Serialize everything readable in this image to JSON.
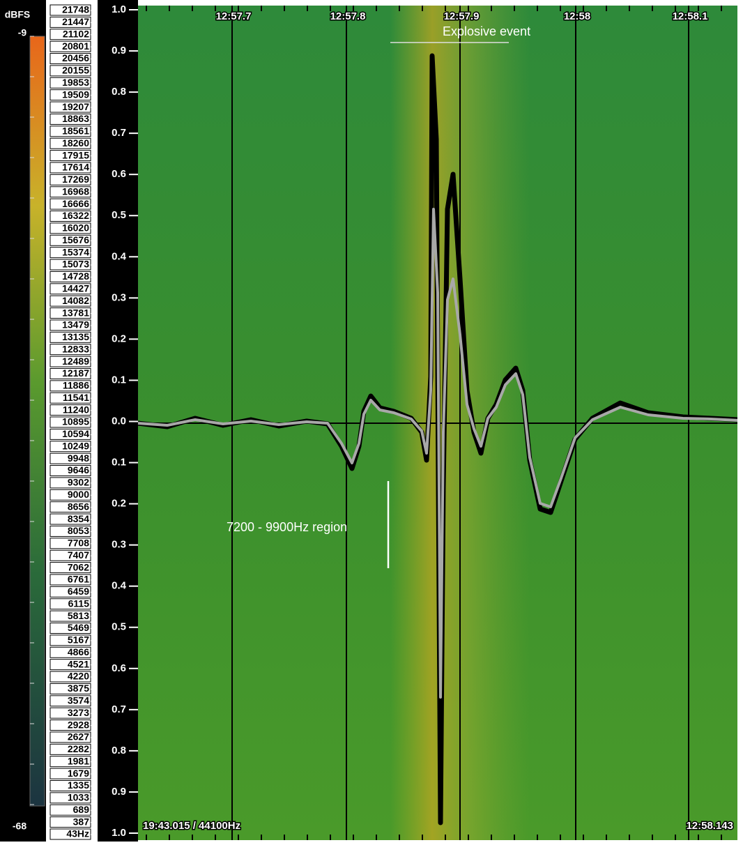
{
  "color_scale": {
    "unit": "dBFS",
    "max": "-9",
    "min": "-68"
  },
  "frequency_labels": [
    "21748",
    "21447",
    "21102",
    "20801",
    "20456",
    "20155",
    "19853",
    "19509",
    "19207",
    "18863",
    "18561",
    "18260",
    "17915",
    "17614",
    "17269",
    "16968",
    "16666",
    "16322",
    "16020",
    "15676",
    "15374",
    "15073",
    "14728",
    "14427",
    "14082",
    "13781",
    "13479",
    "13135",
    "12833",
    "12489",
    "12187",
    "11886",
    "11541",
    "11240",
    "10895",
    "10594",
    "10249",
    "9948",
    "9646",
    "9302",
    "9000",
    "8656",
    "8354",
    "8053",
    "7708",
    "7407",
    "7062",
    "6761",
    "6459",
    "6115",
    "5813",
    "5469",
    "5167",
    "4866",
    "4521",
    "4220",
    "3875",
    "3574",
    "3273",
    "2928",
    "2627",
    "2282",
    "1981",
    "1679",
    "1335",
    "1033",
    "689",
    "387",
    "43Hz"
  ],
  "amplitude_labels": [
    "1.0",
    "0.9",
    "0.8",
    "0.7",
    "0.6",
    "0.5",
    "0.4",
    "0.3",
    "0.2",
    "0.1",
    "0.0",
    "0.1",
    "0.2",
    "0.3",
    "0.4",
    "0.5",
    "0.6",
    "0.7",
    "0.8",
    "0.9",
    "1.0"
  ],
  "time_labels": [
    "12:57.7",
    "12:57.8",
    "12:57.9",
    "12:58",
    "12:58.1"
  ],
  "status": {
    "left": "19:43.015 / 44100Hz",
    "right": "12:58.143"
  },
  "annotations": {
    "event": "Explosive event",
    "region": "7200 - 9900Hz region"
  }
}
